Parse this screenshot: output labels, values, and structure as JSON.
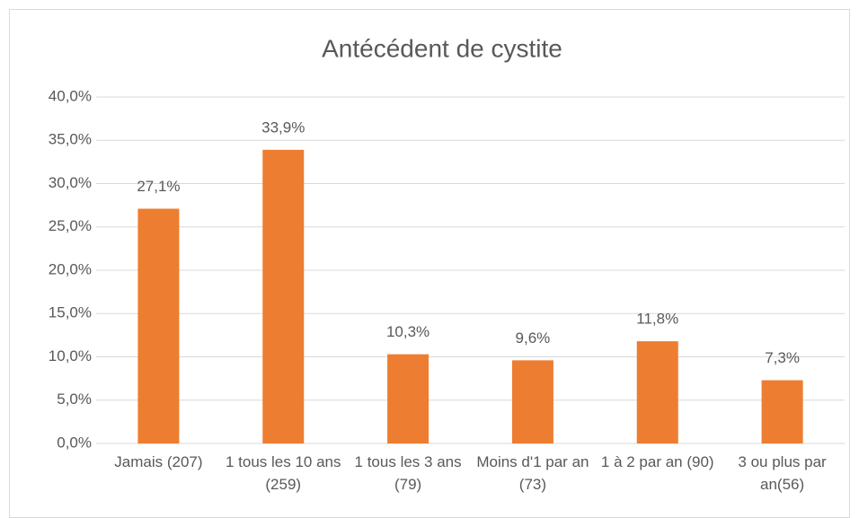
{
  "chart_data": {
    "type": "bar",
    "title": "Antécédent de cystite",
    "categories": [
      "Jamais (207)",
      "1 tous les 10 ans (259)",
      "1 tous les 3 ans (79)",
      "Moins d'1 par an (73)",
      "1 à 2 par an (90)",
      "3 ou plus par an(56)"
    ],
    "values": [
      27.1,
      33.9,
      10.3,
      9.6,
      11.8,
      7.3
    ],
    "value_labels": [
      "27,1%",
      "33,9%",
      "10,3%",
      "9,6%",
      "11,8%",
      "7,3%"
    ],
    "color": "#ed7d31",
    "ylim": [
      0,
      40
    ],
    "yticks": [
      {
        "value": 0,
        "label": "0,0%"
      },
      {
        "value": 5,
        "label": "5,0%"
      },
      {
        "value": 10,
        "label": "10,0%"
      },
      {
        "value": 15,
        "label": "15,0%"
      },
      {
        "value": 20,
        "label": "20,0%"
      },
      {
        "value": 25,
        "label": "25,0%"
      },
      {
        "value": 30,
        "label": "30,0%"
      },
      {
        "value": 35,
        "label": "35,0%"
      },
      {
        "value": 40,
        "label": "40,0%"
      }
    ],
    "grid": true
  }
}
